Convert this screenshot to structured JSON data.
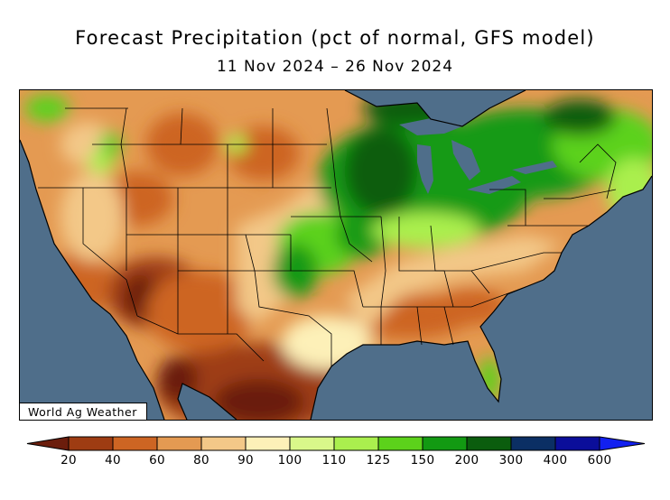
{
  "header": {
    "title": "Forecast Precipitation (pct of normal, GFS model)",
    "subtitle": "11 Nov 2024 – 26 Nov 2024"
  },
  "map": {
    "region": "United States",
    "water_color": "#4f6e8a",
    "credit": "World Ag Weather"
  },
  "legend": {
    "labels": [
      "20",
      "40",
      "60",
      "80",
      "90",
      "100",
      "110",
      "125",
      "150",
      "200",
      "300",
      "400",
      "600"
    ],
    "colors": [
      "#6b1d0c",
      "#9e3c12",
      "#cd6523",
      "#e49a52",
      "#f3c888",
      "#fdf0b8",
      "#d9f78a",
      "#aaef4e",
      "#5cd21b",
      "#129a12",
      "#0b5d0e",
      "#0b2f64",
      "#0b0e9a",
      "#1220f0"
    ]
  }
}
